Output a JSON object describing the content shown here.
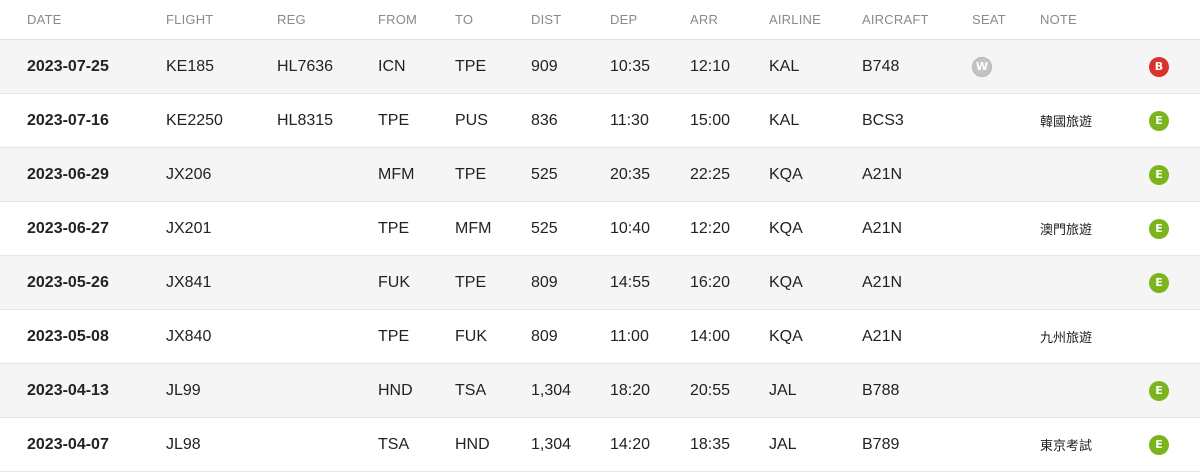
{
  "header": {
    "date": "DATE",
    "flight": "FLIGHT",
    "reg": "REG",
    "from": "FROM",
    "to": "TO",
    "dist": "DIST",
    "dep": "DEP",
    "arr": "ARR",
    "airline": "AIRLINE",
    "aircraft": "AIRCRAFT",
    "seat": "SEAT",
    "note": "NOTE"
  },
  "colors": {
    "economy_badge": "#7ab51d",
    "business_badge": "#d9342b",
    "seat_badge": "#c4c4c4"
  },
  "flights": [
    {
      "date": "2023-07-25",
      "flight": "KE185",
      "reg": "HL7636",
      "from": "ICN",
      "to": "TPE",
      "dist": "909",
      "dep": "10:35",
      "arr": "12:10",
      "airline": "KAL",
      "aircraft": "B748",
      "seat": "W",
      "note": "",
      "class": "B"
    },
    {
      "date": "2023-07-16",
      "flight": "KE2250",
      "reg": "HL8315",
      "from": "TPE",
      "to": "PUS",
      "dist": "836",
      "dep": "11:30",
      "arr": "15:00",
      "airline": "KAL",
      "aircraft": "BCS3",
      "seat": "",
      "note": "韓國旅遊",
      "class": "E"
    },
    {
      "date": "2023-06-29",
      "flight": "JX206",
      "reg": "",
      "from": "MFM",
      "to": "TPE",
      "dist": "525",
      "dep": "20:35",
      "arr": "22:25",
      "airline": "KQA",
      "aircraft": "A21N",
      "seat": "",
      "note": "",
      "class": "E"
    },
    {
      "date": "2023-06-27",
      "flight": "JX201",
      "reg": "",
      "from": "TPE",
      "to": "MFM",
      "dist": "525",
      "dep": "10:40",
      "arr": "12:20",
      "airline": "KQA",
      "aircraft": "A21N",
      "seat": "",
      "note": "澳門旅遊",
      "class": "E"
    },
    {
      "date": "2023-05-26",
      "flight": "JX841",
      "reg": "",
      "from": "FUK",
      "to": "TPE",
      "dist": "809",
      "dep": "14:55",
      "arr": "16:20",
      "airline": "KQA",
      "aircraft": "A21N",
      "seat": "",
      "note": "",
      "class": "E"
    },
    {
      "date": "2023-05-08",
      "flight": "JX840",
      "reg": "",
      "from": "TPE",
      "to": "FUK",
      "dist": "809",
      "dep": "11:00",
      "arr": "14:00",
      "airline": "KQA",
      "aircraft": "A21N",
      "seat": "",
      "note": "九州旅遊",
      "class": ""
    },
    {
      "date": "2023-04-13",
      "flight": "JL99",
      "reg": "",
      "from": "HND",
      "to": "TSA",
      "dist": "1,304",
      "dep": "18:20",
      "arr": "20:55",
      "airline": "JAL",
      "aircraft": "B788",
      "seat": "",
      "note": "",
      "class": "E"
    },
    {
      "date": "2023-04-07",
      "flight": "JL98",
      "reg": "",
      "from": "TSA",
      "to": "HND",
      "dist": "1,304",
      "dep": "14:20",
      "arr": "18:35",
      "airline": "JAL",
      "aircraft": "B789",
      "seat": "",
      "note": "東京考試",
      "class": "E"
    }
  ]
}
